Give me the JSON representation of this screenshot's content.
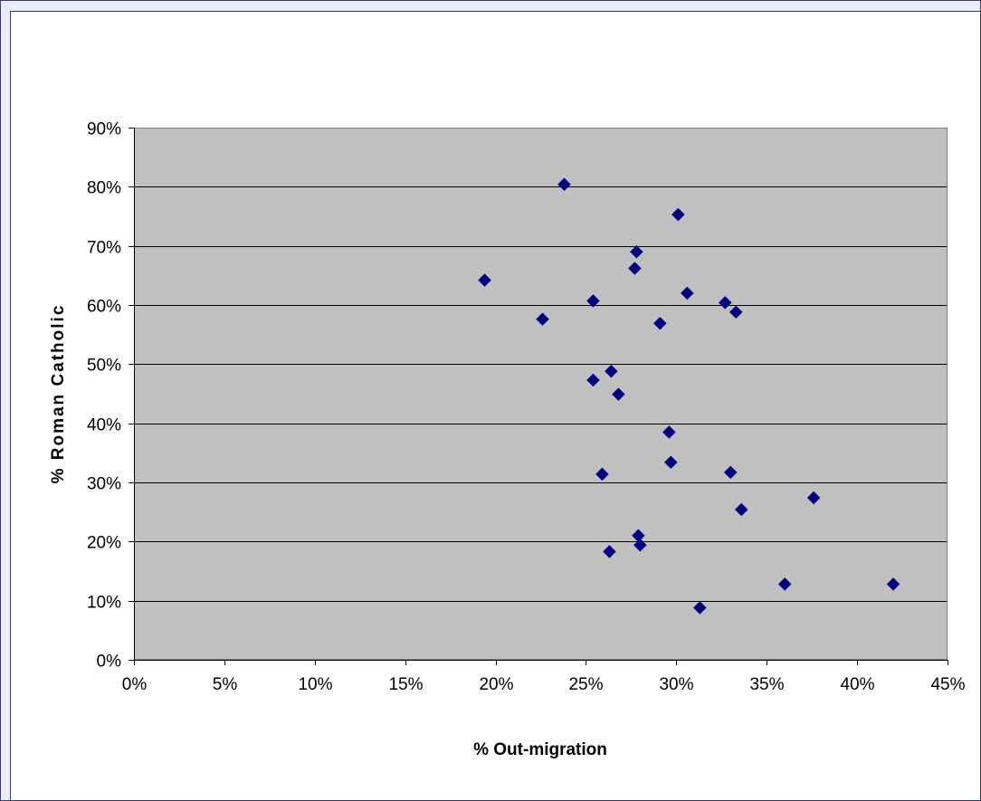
{
  "chart_data": {
    "type": "scatter",
    "title": "",
    "xlabel": "% Out-migration",
    "ylabel": "% Roman Catholic",
    "xlim": [
      0,
      45
    ],
    "ylim": [
      0,
      90
    ],
    "x_ticks": [
      "0%",
      "5%",
      "10%",
      "15%",
      "20%",
      "25%",
      "30%",
      "35%",
      "40%",
      "45%"
    ],
    "y_ticks": [
      "0%",
      "10%",
      "20%",
      "30%",
      "40%",
      "50%",
      "60%",
      "70%",
      "80%",
      "90%"
    ],
    "grid": "horizontal",
    "legend": "none",
    "colors": {
      "plot_background": "#c0c0c0",
      "marker": "#000080",
      "gridline": "#000000",
      "frame_background": "#ededfa",
      "frame_border": "#3b3b7a"
    },
    "marker_shape": "diamond",
    "points": [
      {
        "x": 19.4,
        "y": 64.2
      },
      {
        "x": 22.6,
        "y": 57.6
      },
      {
        "x": 23.8,
        "y": 80.4
      },
      {
        "x": 25.4,
        "y": 60.7
      },
      {
        "x": 25.4,
        "y": 47.3
      },
      {
        "x": 25.9,
        "y": 31.4
      },
      {
        "x": 26.3,
        "y": 18.3
      },
      {
        "x": 26.4,
        "y": 48.8
      },
      {
        "x": 26.8,
        "y": 44.9
      },
      {
        "x": 27.7,
        "y": 66.2
      },
      {
        "x": 27.8,
        "y": 69.0
      },
      {
        "x": 27.9,
        "y": 21.0
      },
      {
        "x": 28.0,
        "y": 19.4
      },
      {
        "x": 29.1,
        "y": 56.9
      },
      {
        "x": 29.6,
        "y": 38.5
      },
      {
        "x": 29.7,
        "y": 33.4
      },
      {
        "x": 30.1,
        "y": 75.3
      },
      {
        "x": 30.6,
        "y": 62.0
      },
      {
        "x": 31.3,
        "y": 8.8
      },
      {
        "x": 32.7,
        "y": 60.4
      },
      {
        "x": 33.0,
        "y": 31.7
      },
      {
        "x": 33.3,
        "y": 58.8
      },
      {
        "x": 33.6,
        "y": 25.4
      },
      {
        "x": 36.0,
        "y": 12.8
      },
      {
        "x": 37.6,
        "y": 27.4
      },
      {
        "x": 42.0,
        "y": 12.8
      }
    ]
  }
}
